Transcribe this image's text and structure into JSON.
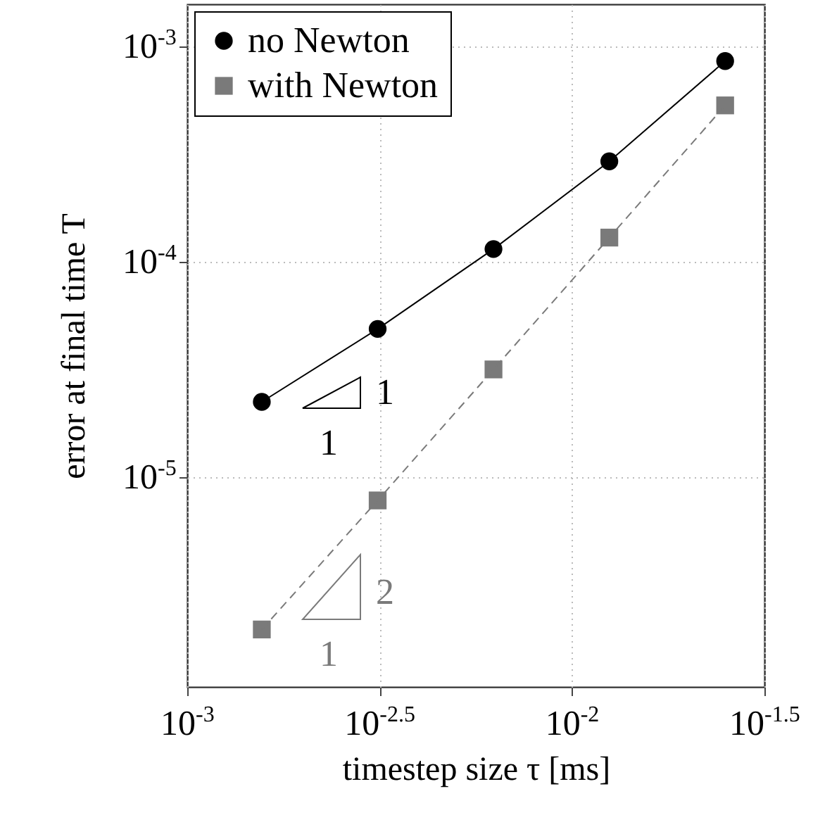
{
  "chart_data": {
    "type": "line",
    "xlabel": "timestep size τ [ms]",
    "ylabel": "error at final time T",
    "log": "xy",
    "grid": true,
    "legend": "top left",
    "x": [
      0.0015625,
      0.003125,
      0.00625,
      0.0125,
      0.025
    ],
    "xlim": [
      0.001,
      0.031623
    ],
    "xticks": [
      {
        "value": 0.001,
        "label": "10$^{-3}$"
      },
      {
        "value": 0.0031623,
        "label": "10$^{-2.5}$"
      },
      {
        "value": 0.01,
        "label": "10$^{-2}$"
      },
      {
        "value": 0.031623,
        "label": "10$^{-1.5}$"
      }
    ],
    "ylim": [
      1.06e-06,
      0.00158
    ],
    "yticks": [
      {
        "value": 1e-05,
        "label": "10$^{-5}$"
      },
      {
        "value": 0.0001,
        "label": "10$^{-4}$"
      },
      {
        "value": 0.001,
        "label": "10$^{-3}$"
      }
    ],
    "series": [
      {
        "name": "no Newton",
        "color": "#000000",
        "marker": "circle",
        "line_style": "solid",
        "values": [
          2.24e-05,
          4.89e-05,
          0.000115,
          0.000294,
          0.00086
        ]
      },
      {
        "name": "with Newton",
        "color": "#7a7a7a",
        "marker": "square",
        "line_style": "dashed",
        "values": [
          1.96e-06,
          7.8e-06,
          3.17e-05,
          0.00013,
          0.000535
        ]
      }
    ],
    "annotations": [
      "1",
      "1",
      "2",
      "1"
    ]
  }
}
